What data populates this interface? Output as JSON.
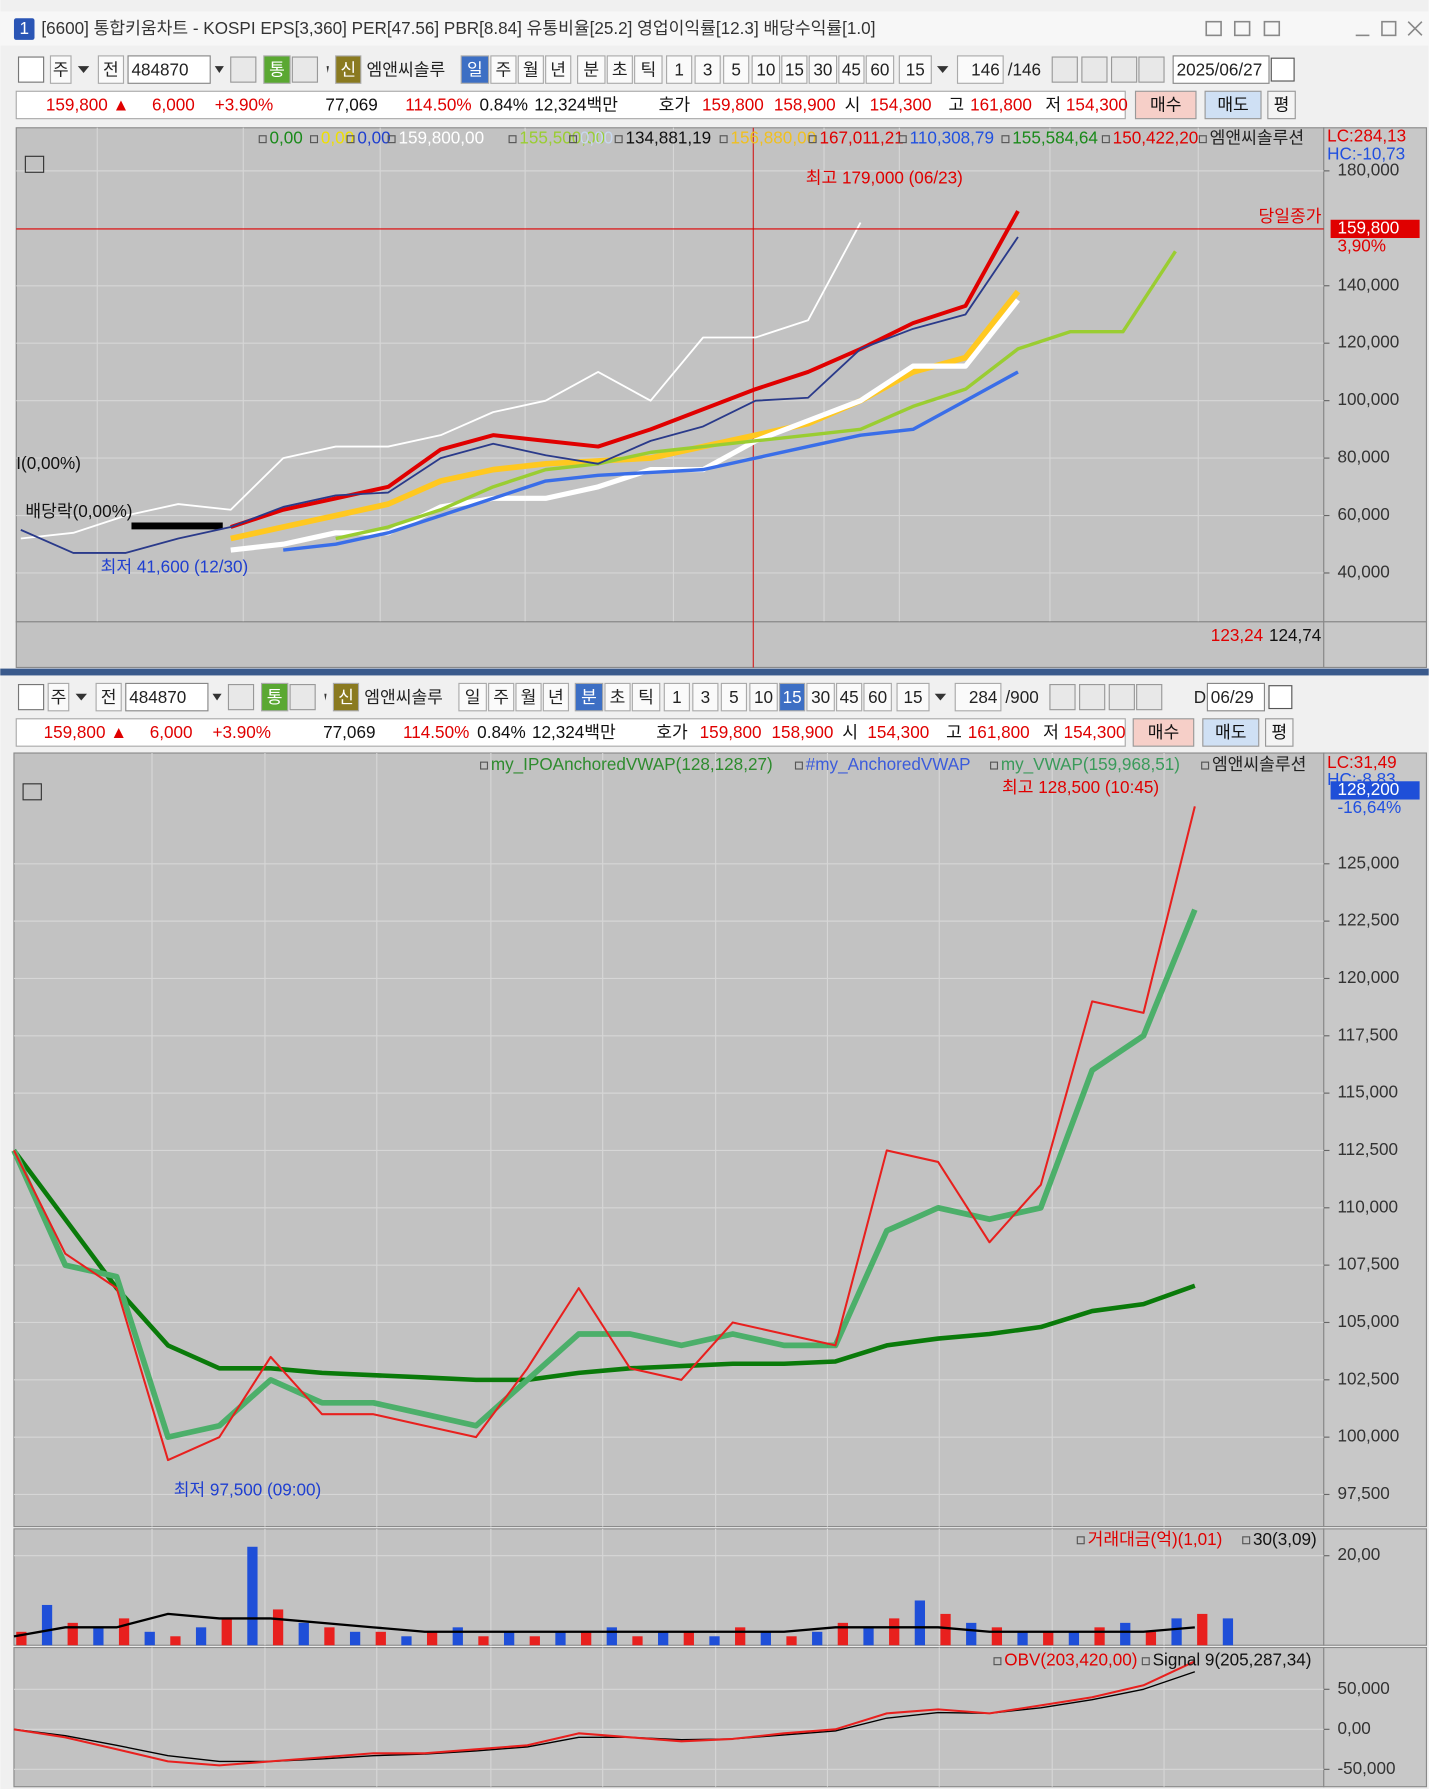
{
  "window": {
    "tab": "1",
    "title": "[6600] 통합키움차트 - KOSPI EPS[3,360] PER[47.56] PBR[8.84] 유통비율[25.2] 영업이익률[12.3] 배당수익률[1.0]"
  },
  "toolbars": [
    {
      "items": [
        "주",
        "전",
        "484870",
        "통",
        "신",
        "엠앤씨솔루",
        "일",
        "주",
        "월",
        "년",
        "분",
        "초",
        "틱",
        "1",
        "3",
        "5",
        "10",
        "15",
        "30",
        "45",
        "60",
        "15",
        "146",
        "/146",
        "2025/06/27"
      ],
      "active": [
        6
      ]
    },
    {
      "items": [
        "주",
        "전",
        "484870",
        "통",
        "신",
        "엠앤씨솔루",
        "일",
        "주",
        "월",
        "년",
        "분",
        "초",
        "틱",
        "1",
        "3",
        "5",
        "10",
        "15",
        "30",
        "45",
        "60",
        "15",
        "284",
        "/900",
        "D",
        "06/29"
      ],
      "active": [
        10,
        17
      ]
    }
  ],
  "info_bar": {
    "items": [
      {
        "text": "159,800 ▲",
        "color": "#e00000"
      },
      {
        "text": "6,000",
        "color": "#e00000"
      },
      {
        "text": "+3.90%",
        "color": "#e00000"
      },
      {
        "text": "77,069",
        "color": "#111111"
      },
      {
        "text": "114.50%",
        "color": "#e00000"
      },
      {
        "text": "0.84%",
        "color": "#111111"
      },
      {
        "text": "12,324백만",
        "color": "#111111"
      },
      {
        "text": "호가",
        "color": "#111111"
      },
      {
        "text": "159,800",
        "color": "#e00000"
      },
      {
        "text": "158,900",
        "color": "#e00000"
      },
      {
        "text": "시",
        "color": "#111111"
      },
      {
        "text": "154,300",
        "color": "#e00000"
      },
      {
        "text": "고",
        "color": "#111111"
      },
      {
        "text": "161,800",
        "color": "#e00000"
      },
      {
        "text": "저",
        "color": "#111111"
      },
      {
        "text": "154,300",
        "color": "#e00000"
      }
    ],
    "buttons": [
      "매수",
      "매도",
      "평"
    ]
  },
  "chart_data": [
    {
      "type": "line",
      "legend": [
        {
          "text": "0,00",
          "color": "#1a8a1a"
        },
        {
          "text": "0,00",
          "color": "#f0e000"
        },
        {
          "text": "0,00",
          "color": "#1f3fd0"
        },
        {
          "text": "159,800,00",
          "color": "#ffffff"
        },
        {
          "text": "155,500,00",
          "color": "#9acd32"
        },
        {
          "text": "0,00",
          "color": "#c8d8ee"
        },
        {
          "text": "134,881,19",
          "color": "#111111"
        },
        {
          "text": "156,880,00",
          "color": "#f0c020"
        },
        {
          "text": "167,011,21",
          "color": "#e00000"
        },
        {
          "text": "110,308,79",
          "color": "#2050e0"
        },
        {
          "text": "155,584,64",
          "color": "#1a8a1a"
        },
        {
          "text": "150,422,20",
          "color": "#e00000"
        },
        {
          "text": "엠앤씨솔루션",
          "color": "#222222"
        }
      ],
      "lc": "LC:284,13",
      "hc": "HC:-10,73",
      "ylim": [
        23000,
        195000
      ],
      "yticks": [
        {
          "value": 40000,
          "label": "40,000"
        },
        {
          "value": 60000,
          "label": "60,000"
        },
        {
          "value": 80000,
          "label": "80,000"
        },
        {
          "value": 100000,
          "label": "100,000"
        },
        {
          "value": 120000,
          "label": "120,000"
        },
        {
          "value": 140000,
          "label": "140,000"
        },
        {
          "value": 180000,
          "label": "180,000"
        }
      ],
      "series": [
        {
          "color": "#ffffff",
          "values": [
            52000,
            54000,
            60000,
            64000,
            62000,
            80000,
            84000,
            84000,
            88000,
            96000,
            100000,
            110000,
            100000,
            122000,
            122000,
            128000,
            162000,
            null,
            null,
            null,
            null,
            null,
            null
          ]
        },
        {
          "color": "#9acd32",
          "values": [
            null,
            null,
            null,
            null,
            null,
            null,
            52000,
            56000,
            62000,
            70000,
            76000,
            78000,
            82000,
            84000,
            86000,
            88000,
            90000,
            98000,
            104000,
            118000,
            124000,
            124000,
            152000
          ]
        },
        {
          "color": "#3a6ee8",
          "values": [
            null,
            null,
            null,
            null,
            null,
            48000,
            50000,
            54000,
            60000,
            66000,
            72000,
            74000,
            75000,
            76000,
            80000,
            84000,
            88000,
            90000,
            100000,
            110000,
            null,
            null,
            null
          ]
        },
        {
          "color": "#ffffff",
          "values": [
            null,
            null,
            null,
            null,
            48000,
            50000,
            54000,
            54000,
            63000,
            66000,
            66000,
            70000,
            76000,
            76000,
            86000,
            93000,
            100000,
            112000,
            112000,
            135000,
            null,
            null,
            null
          ]
        },
        {
          "color": "#ffc820",
          "values": [
            null,
            null,
            null,
            null,
            52000,
            56000,
            60000,
            64000,
            72000,
            76000,
            78000,
            79000,
            80000,
            84000,
            88000,
            92000,
            100000,
            110000,
            115000,
            138000,
            null,
            null,
            null
          ]
        },
        {
          "color": "#e00000",
          "values": [
            null,
            null,
            null,
            null,
            56000,
            62000,
            66000,
            70000,
            83000,
            88000,
            86000,
            84000,
            90000,
            97000,
            104000,
            110000,
            118000,
            127000,
            133000,
            166000,
            null,
            null,
            null
          ]
        },
        {
          "color": "#2a3a8a",
          "values": [
            55000,
            47000,
            47000,
            52000,
            56000,
            63000,
            67000,
            68000,
            80000,
            85000,
            81000,
            78000,
            86000,
            91000,
            100000,
            101000,
            118000,
            125000,
            130000,
            157000,
            null,
            null,
            null
          ]
        }
      ],
      "price_tag": {
        "value": 159800,
        "label": "159,800",
        "change": "3,90%",
        "close_label": "당일종가"
      },
      "annotations": {
        "high": "최고 179,000 (06/23)",
        "low": "최저 41,600 (12/30)",
        "ex_div": "배당락(0,00%)",
        "mark": "I(0,00%)"
      },
      "sub_values": [
        "123,24",
        "124,74"
      ]
    },
    {
      "type": "line",
      "legend": [
        {
          "text": "my_IPOAnchoredVWAP(128,128,27)",
          "color": "#2e8b2e"
        },
        {
          "text": "#my_AnchoredVWAP",
          "color": "#3b5bdb"
        },
        {
          "text": "my_VWAP(159,968,51)",
          "color": "#3a9a5a"
        },
        {
          "text": "엠앤씨솔루션",
          "color": "#222222"
        }
      ],
      "lc": "LC:31,49",
      "hc": "HC:-8,83",
      "ylim": [
        96100,
        129830
      ],
      "yticks": [
        {
          "value": 97500,
          "label": "97,500"
        },
        {
          "value": 100000,
          "label": "100,000"
        },
        {
          "value": 102500,
          "label": "102,500"
        },
        {
          "value": 105000,
          "label": "105,000"
        },
        {
          "value": 107500,
          "label": "107,500"
        },
        {
          "value": 110000,
          "label": "110,000"
        },
        {
          "value": 112500,
          "label": "112,500"
        },
        {
          "value": 115000,
          "label": "115,000"
        },
        {
          "value": 117500,
          "label": "117,500"
        },
        {
          "value": 120000,
          "label": "120,000"
        },
        {
          "value": 122500,
          "label": "122,500"
        },
        {
          "value": 125000,
          "label": "125,000"
        }
      ],
      "series": [
        {
          "color": "#0a7a0a",
          "values": [
            112500,
            109500,
            106500,
            104000,
            103000,
            103000,
            102800,
            102700,
            102600,
            102500,
            102500,
            102800,
            103000,
            103100,
            103200,
            103200,
            103300,
            104000,
            104300,
            104500,
            104800,
            105500,
            105800,
            106600
          ]
        },
        {
          "color": "#4caf6a",
          "values": [
            112500,
            107500,
            107000,
            100000,
            100500,
            102500,
            101500,
            101500,
            101000,
            100500,
            102500,
            104500,
            104500,
            104000,
            104500,
            104000,
            104000,
            109000,
            110000,
            109500,
            110000,
            116000,
            117500,
            123000
          ]
        },
        {
          "color": "#e8201e",
          "values": [
            112500,
            108000,
            106500,
            99000,
            100000,
            103500,
            101000,
            101000,
            100500,
            100000,
            103000,
            106500,
            103000,
            102500,
            105000,
            104500,
            104000,
            112500,
            112000,
            108500,
            111000,
            119000,
            118500,
            127500
          ]
        }
      ],
      "price_tag": {
        "value": 128200,
        "label": "128,200",
        "change": "-16,64%"
      },
      "annotations": {
        "high": "최고 128,500 (10:45)",
        "low": "최저 97,500 (09:00)"
      }
    },
    {
      "type": "bar",
      "legend": [
        {
          "text": "거래대금(억)(1,01)",
          "color": "#e00000"
        },
        {
          "text": "30(3,09)",
          "color": "#111111"
        }
      ],
      "ylim": [
        0,
        26
      ],
      "yticks": [
        {
          "value": 20,
          "label": "20,00"
        }
      ],
      "colors": [
        "#e8201e",
        "#1f4fd8"
      ],
      "values": [
        3,
        9,
        5,
        4,
        6,
        3,
        2,
        4,
        6,
        22,
        8,
        5,
        4,
        3,
        3,
        2,
        3,
        4,
        2,
        3,
        2,
        3,
        3,
        4,
        2,
        3,
        3,
        2,
        4,
        3,
        2,
        3,
        5,
        4,
        6,
        10,
        7,
        5,
        4,
        3,
        3,
        3,
        4,
        5,
        3,
        6,
        7,
        6
      ],
      "ma": {
        "color": "#000000",
        "values": [
          2,
          4,
          4,
          7,
          6,
          6,
          5,
          4,
          3,
          3,
          3,
          3,
          3,
          3,
          3,
          3,
          4,
          4,
          4,
          3,
          3,
          3,
          3,
          4
        ]
      }
    },
    {
      "type": "line",
      "legend": [
        {
          "text": "OBV(203,420,00)",
          "color": "#e00000"
        },
        {
          "text": "Signal 9(205,287,34)",
          "color": "#111111"
        }
      ],
      "ylim": [
        -71700,
        102200
      ],
      "yticks": [
        {
          "value": 50000,
          "label": "50,000"
        },
        {
          "value": 0,
          "label": "0,00"
        },
        {
          "value": -50000,
          "label": "-50,000"
        }
      ],
      "series": [
        {
          "color": "#000000",
          "values": [
            0,
            -8000,
            -20000,
            -33000,
            -40000,
            -40000,
            -37000,
            -33000,
            -31000,
            -27000,
            -22000,
            -10000,
            -10000,
            -13000,
            -12000,
            -7000,
            -2000,
            14000,
            21000,
            20000,
            27000,
            37000,
            50000,
            72000
          ]
        },
        {
          "color": "#e8201e",
          "values": [
            0,
            -10000,
            -25000,
            -40000,
            -45000,
            -40000,
            -35000,
            -30000,
            -30000,
            -25000,
            -20000,
            -5000,
            -10000,
            -15000,
            -12000,
            -5000,
            0,
            20000,
            25000,
            20000,
            30000,
            40000,
            55000,
            85000
          ]
        }
      ]
    }
  ]
}
